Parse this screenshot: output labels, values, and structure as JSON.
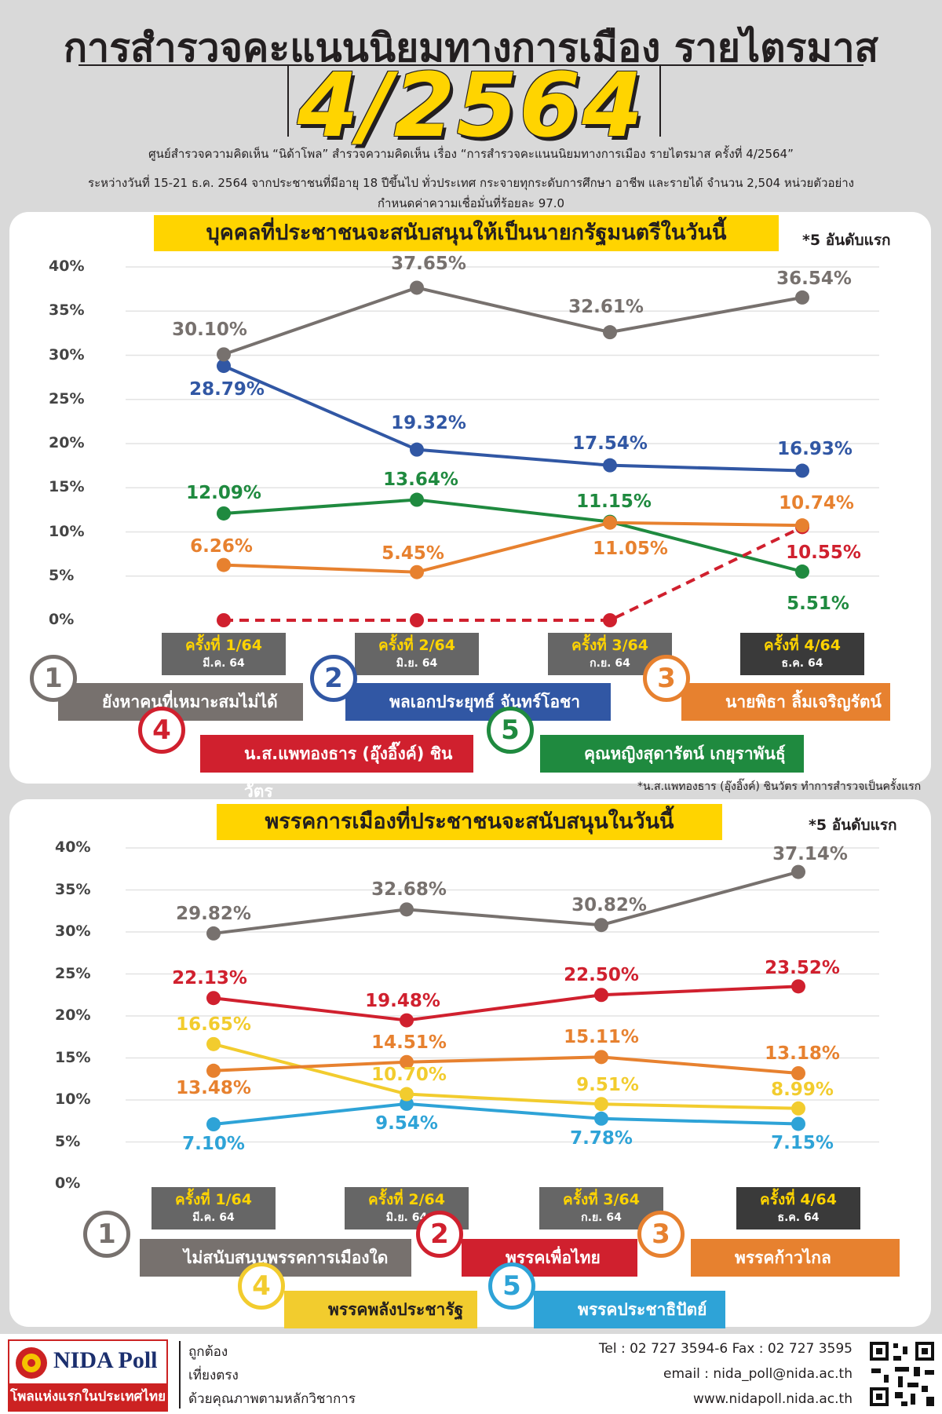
{
  "header": {
    "title": "การสำรวจคะแนนนิยมทางการเมือง รายไตรมาส",
    "big_number": "4/2564",
    "subtitle_lines": [
      "ศูนย์สำรวจความคิดเห็น “นิด้าโพล” สำรวจความคิดเห็น เรื่อง “การสำรวจคะแนนนิยมทางการเมือง รายไตรมาส ครั้งที่ 4/2564”",
      "ระหว่างวันที่ 15-21 ธ.ค. 2564 จากประชาชนที่มีอายุ 18 ปีขึ้นไป ทั่วประเทศ กระจายทุกระดับการศึกษา อาชีพ และรายได้ จำนวน 2,504 หน่วยตัวอย่าง",
      "กำหนดค่าความเชื่อมั่นที่ร้อยละ 97.0"
    ]
  },
  "chart_data": [
    {
      "type": "line",
      "title": "บุคคลที่ประชาชนจะสนับสนุนให้เป็นนายกรัฐมนตรีในวันนี้",
      "note": "*5 อันดับแรก",
      "ylim": [
        0,
        40
      ],
      "yticks": [
        "0%",
        "5%",
        "10%",
        "15%",
        "20%",
        "25%",
        "30%",
        "35%",
        "40%"
      ],
      "categories": [
        {
          "round": "ครั้งที่ 1/64",
          "date": "มี.ค. 64"
        },
        {
          "round": "ครั้งที่ 2/64",
          "date": "มิ.ย. 64"
        },
        {
          "round": "ครั้งที่ 3/64",
          "date": "ก.ย. 64"
        },
        {
          "round": "ครั้งที่ 4/64",
          "date": "ธ.ค. 64"
        }
      ],
      "series": [
        {
          "rank": "1",
          "name": "ยังหาคนที่เหมาะสมไม่ได้",
          "color": "#77716e",
          "values": [
            30.1,
            37.65,
            32.61,
            36.54
          ],
          "labels": [
            "30.10%",
            "37.65%",
            "32.61%",
            "36.54%"
          ]
        },
        {
          "rank": "2",
          "name": "พลเอกประยุทธ์ จันทร์โอชา",
          "color": "#3157a4",
          "values": [
            28.79,
            19.32,
            17.54,
            16.93
          ],
          "labels": [
            "28.79%",
            "19.32%",
            "17.54%",
            "16.93%"
          ]
        },
        {
          "rank": "3",
          "name": "นายพิธา ลิ้มเจริญรัตน์",
          "color": "#e7812f",
          "values": [
            6.26,
            5.45,
            11.05,
            10.74
          ],
          "labels": [
            "6.26%",
            "5.45%",
            "11.05%",
            "10.74%"
          ]
        },
        {
          "rank": "4",
          "name": "น.ส.แพทองธาร (อุ๊งอิ๊งค์) ชินวัตร",
          "color": "#d0202e",
          "dashed": true,
          "values": [
            0,
            0,
            0,
            10.55
          ],
          "labels": [
            "",
            "",
            "",
            "10.55%"
          ]
        },
        {
          "rank": "5",
          "name": "คุณหญิงสุดารัตน์ เกยุราพันธุ์",
          "color": "#1f8a3f",
          "values": [
            12.09,
            13.64,
            11.15,
            5.51
          ],
          "labels": [
            "12.09%",
            "13.64%",
            "11.15%",
            "5.51%"
          ]
        }
      ],
      "footnote": "*น.ส.แพทองธาร (อุ๊งอิ๊งค์) ชินวัตร ทำการสำรวจเป็นครั้งแรก"
    },
    {
      "type": "line",
      "title": "พรรคการเมืองที่ประชาชนจะสนับสนุนในวันนี้",
      "note": "*5 อันดับแรก",
      "ylim": [
        0,
        40
      ],
      "yticks": [
        "0%",
        "5%",
        "10%",
        "15%",
        "20%",
        "25%",
        "30%",
        "35%",
        "40%"
      ],
      "categories": [
        {
          "round": "ครั้งที่ 1/64",
          "date": "มี.ค. 64"
        },
        {
          "round": "ครั้งที่ 2/64",
          "date": "มิ.ย. 64"
        },
        {
          "round": "ครั้งที่ 3/64",
          "date": "ก.ย. 64"
        },
        {
          "round": "ครั้งที่ 4/64",
          "date": "ธ.ค. 64"
        }
      ],
      "series": [
        {
          "rank": "1",
          "name": "ไม่สนับสนุนพรรคการเมืองใดเลย",
          "color": "#77716e",
          "values": [
            29.82,
            32.68,
            30.82,
            37.14
          ],
          "labels": [
            "29.82%",
            "32.68%",
            "30.82%",
            "37.14%"
          ]
        },
        {
          "rank": "2",
          "name": "พรรคเพื่อไทย",
          "color": "#d0202e",
          "values": [
            22.13,
            19.48,
            22.5,
            23.52
          ],
          "labels": [
            "22.13%",
            "19.48%",
            "22.50%",
            "23.52%"
          ]
        },
        {
          "rank": "3",
          "name": "พรรคก้าวไกล",
          "color": "#e7812f",
          "values": [
            13.48,
            14.51,
            15.11,
            13.18
          ],
          "labels": [
            "13.48%",
            "14.51%",
            "15.11%",
            "13.18%"
          ]
        },
        {
          "rank": "4",
          "name": "พรรคพลังประชารัฐ",
          "color": "#f2cc2e",
          "values": [
            16.65,
            10.7,
            9.51,
            8.99
          ],
          "labels": [
            "16.65%",
            "10.70%",
            "9.51%",
            "8.99%"
          ]
        },
        {
          "rank": "5",
          "name": "พรรคประชาธิปัตย์",
          "color": "#2ea3d7",
          "values": [
            7.1,
            9.54,
            7.78,
            7.15
          ],
          "labels": [
            "7.10%",
            "9.54%",
            "7.78%",
            "7.15%"
          ]
        }
      ]
    }
  ],
  "footer": {
    "logo_text": "NIDA Poll",
    "tagline": "โพลแห่งแรกในประเทศไทย",
    "values": [
      "ถูกต้อง",
      "เที่ยงตรง",
      "ด้วยคุณภาพตามหลักวิชาการ"
    ],
    "tel": "Tel : 02 727 3594-6 Fax : 02 727 3595",
    "email": "email : nida_poll@nida.ac.th",
    "website": "www.nidapoll.nida.ac.th"
  }
}
